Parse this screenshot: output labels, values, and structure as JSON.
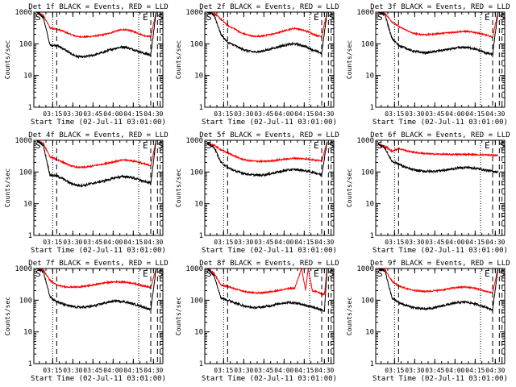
{
  "colors": {
    "events": "#000000",
    "lld": "#ff0000",
    "axes": "#000000",
    "background": "#ffffff"
  },
  "ylabel": "Counts/sec",
  "xlabel": "Start Time (02-Jul-11 03:01:00)",
  "xticks": [
    {
      "t": 15,
      "label": "03:15"
    },
    {
      "t": 30,
      "label": "03:30"
    },
    {
      "t": 45,
      "label": "03:45"
    },
    {
      "t": 60,
      "label": "04:00"
    },
    {
      "t": 75,
      "label": "04:15"
    },
    {
      "t": 90,
      "label": "04:30"
    }
  ],
  "yticks": [
    {
      "v": 1,
      "label": "1"
    },
    {
      "v": 10,
      "label": "10"
    },
    {
      "v": 100,
      "label": "100"
    },
    {
      "v": 1000,
      "label": "1000"
    }
  ],
  "markers": {
    "start": "S",
    "end": "E",
    "s2": "S"
  },
  "chart_data": [
    {
      "type": "line",
      "title": "Det 1f BLACK = Events, RED = LLD",
      "yscale": "log",
      "xlim": [
        1,
        97
      ],
      "ylim": [
        1,
        1000
      ],
      "x": [
        3,
        8,
        13,
        18,
        23,
        28,
        33,
        38,
        43,
        48,
        53,
        58,
        63,
        68,
        73,
        78,
        83,
        88,
        92
      ],
      "series": [
        {
          "color": "red",
          "values": [
            1000,
            800,
            320,
            290,
            250,
            200,
            170,
            165,
            170,
            180,
            195,
            220,
            260,
            280,
            260,
            220,
            180,
            170,
            1000
          ]
        },
        {
          "color": "black",
          "values": [
            1000,
            700,
            90,
            90,
            70,
            50,
            40,
            38,
            42,
            47,
            55,
            65,
            75,
            80,
            70,
            60,
            50,
            45,
            1000
          ]
        }
      ],
      "vlines": [
        {
          "t": 15,
          "style": "dotted"
        },
        {
          "t": 18,
          "style": "dashed"
        },
        {
          "t": 79,
          "style": "dotted"
        },
        {
          "t": 88,
          "style": "dashed"
        },
        {
          "t": 93,
          "style": "dashed"
        },
        {
          "t": 95,
          "style": "dashed"
        }
      ]
    },
    {
      "type": "line",
      "title": "Det 2f BLACK = Events, RED = LLD",
      "yscale": "log",
      "xlim": [
        1,
        97
      ],
      "ylim": [
        1,
        1000
      ],
      "x": [
        3,
        8,
        13,
        18,
        23,
        28,
        33,
        38,
        43,
        48,
        53,
        58,
        63,
        68,
        73,
        78,
        83,
        88,
        92
      ],
      "series": [
        {
          "color": "red",
          "values": [
            1000,
            900,
            600,
            380,
            300,
            220,
            190,
            170,
            175,
            190,
            210,
            240,
            280,
            310,
            280,
            240,
            190,
            170,
            1000
          ]
        },
        {
          "color": "black",
          "values": [
            1000,
            800,
            200,
            110,
            90,
            70,
            60,
            55,
            58,
            65,
            75,
            85,
            95,
            100,
            90,
            75,
            60,
            50,
            1000
          ]
        }
      ],
      "vlines": [
        {
          "t": 15,
          "style": "dotted"
        },
        {
          "t": 18,
          "style": "dashed"
        },
        {
          "t": 79,
          "style": "dotted"
        },
        {
          "t": 88,
          "style": "dashed"
        },
        {
          "t": 93,
          "style": "dashed"
        },
        {
          "t": 95,
          "style": "dashed"
        }
      ]
    },
    {
      "type": "line",
      "title": "Det 3f BLACK = Events, RED = LLD",
      "yscale": "log",
      "xlim": [
        1,
        97
      ],
      "ylim": [
        1,
        1000
      ],
      "x": [
        3,
        8,
        13,
        18,
        23,
        28,
        33,
        38,
        43,
        48,
        53,
        58,
        63,
        68,
        73,
        78,
        83,
        88,
        92
      ],
      "series": [
        {
          "color": "red",
          "values": [
            1000,
            900,
            500,
            350,
            280,
            220,
            200,
            195,
            200,
            210,
            220,
            230,
            240,
            245,
            235,
            215,
            190,
            160,
            1000
          ]
        },
        {
          "color": "black",
          "values": [
            1000,
            800,
            150,
            90,
            75,
            60,
            55,
            52,
            55,
            60,
            65,
            70,
            75,
            78,
            72,
            62,
            52,
            45,
            1000
          ]
        }
      ],
      "vlines": [
        {
          "t": 15,
          "style": "dotted"
        },
        {
          "t": 18,
          "style": "dashed"
        },
        {
          "t": 79,
          "style": "dotted"
        },
        {
          "t": 88,
          "style": "dashed"
        },
        {
          "t": 93,
          "style": "dashed"
        },
        {
          "t": 95,
          "style": "dashed"
        }
      ]
    },
    {
      "type": "line",
      "title": "Det 4f BLACK = Events, RED = LLD",
      "yscale": "log",
      "xlim": [
        1,
        97
      ],
      "ylim": [
        1,
        1000
      ],
      "x": [
        3,
        8,
        13,
        18,
        23,
        28,
        33,
        38,
        43,
        48,
        53,
        58,
        63,
        68,
        73,
        78,
        83,
        88,
        92
      ],
      "series": [
        {
          "color": "red",
          "values": [
            1000,
            800,
            300,
            250,
            200,
            160,
            140,
            140,
            150,
            165,
            180,
            200,
            220,
            240,
            230,
            210,
            180,
            160,
            1000
          ]
        },
        {
          "color": "black",
          "values": [
            1000,
            700,
            80,
            75,
            60,
            45,
            38,
            38,
            42,
            47,
            52,
            60,
            68,
            72,
            68,
            60,
            50,
            45,
            1000
          ]
        }
      ],
      "vlines": [
        {
          "t": 15,
          "style": "dotted"
        },
        {
          "t": 18,
          "style": "dashed"
        },
        {
          "t": 79,
          "style": "dotted"
        },
        {
          "t": 88,
          "style": "dashed"
        },
        {
          "t": 93,
          "style": "dashed"
        },
        {
          "t": 95,
          "style": "dashed"
        }
      ]
    },
    {
      "type": "line",
      "title": "Det 5f BLACK = Events, RED = LLD",
      "yscale": "log",
      "xlim": [
        1,
        97
      ],
      "ylim": [
        1,
        1000
      ],
      "x": [
        3,
        8,
        13,
        18,
        23,
        28,
        33,
        38,
        43,
        48,
        53,
        58,
        63,
        68,
        73,
        78,
        83,
        88,
        92
      ],
      "series": [
        {
          "color": "red",
          "values": [
            800,
            700,
            500,
            400,
            320,
            260,
            230,
            220,
            215,
            220,
            230,
            245,
            260,
            270,
            265,
            255,
            240,
            220,
            900
          ]
        },
        {
          "color": "black",
          "values": [
            800,
            600,
            200,
            140,
            110,
            95,
            85,
            80,
            80,
            85,
            95,
            105,
            115,
            120,
            115,
            105,
            95,
            80,
            900
          ]
        }
      ],
      "vlines": [
        {
          "t": 15,
          "style": "dotted"
        },
        {
          "t": 18,
          "style": "dashed"
        },
        {
          "t": 79,
          "style": "dotted"
        },
        {
          "t": 88,
          "style": "dashed"
        },
        {
          "t": 93,
          "style": "dashed"
        },
        {
          "t": 95,
          "style": "dashed"
        }
      ]
    },
    {
      "type": "line",
      "title": "Det 6f BLACK = Events, RED = LLD",
      "yscale": "log",
      "xlim": [
        1,
        97
      ],
      "ylim": [
        1,
        1000
      ],
      "x": [
        3,
        8,
        13,
        18,
        23,
        28,
        33,
        38,
        43,
        48,
        53,
        58,
        63,
        68,
        73,
        78,
        83,
        88,
        92
      ],
      "series": [
        {
          "color": "red",
          "values": [
            750,
            650,
            450,
            550,
            480,
            430,
            400,
            380,
            370,
            365,
            360,
            360,
            360,
            360,
            355,
            350,
            345,
            340,
            340
          ]
        },
        {
          "color": "black",
          "values": [
            750,
            550,
            220,
            180,
            140,
            120,
            110,
            105,
            105,
            110,
            115,
            125,
            135,
            140,
            135,
            125,
            115,
            105,
            100
          ]
        }
      ],
      "vlines": [
        {
          "t": 15,
          "style": "dotted"
        },
        {
          "t": 18,
          "style": "dashed"
        },
        {
          "t": 79,
          "style": "dotted"
        },
        {
          "t": 88,
          "style": "dashed"
        },
        {
          "t": 93,
          "style": "dashed"
        },
        {
          "t": 95,
          "style": "dashed"
        }
      ]
    },
    {
      "type": "line",
      "title": "Det 7f BLACK = Events, RED = LLD",
      "yscale": "log",
      "xlim": [
        1,
        97
      ],
      "ylim": [
        1,
        1000
      ],
      "x": [
        3,
        8,
        13,
        18,
        23,
        28,
        33,
        38,
        43,
        48,
        53,
        58,
        63,
        68,
        73,
        78,
        83,
        88,
        92
      ],
      "series": [
        {
          "color": "red",
          "values": [
            1000,
            900,
            420,
            300,
            270,
            260,
            260,
            270,
            290,
            320,
            350,
            370,
            380,
            375,
            350,
            320,
            280,
            250,
            1000
          ]
        },
        {
          "color": "black",
          "values": [
            1000,
            800,
            130,
            90,
            75,
            65,
            60,
            60,
            63,
            70,
            80,
            90,
            95,
            90,
            80,
            70,
            60,
            50,
            1000
          ]
        }
      ],
      "vlines": [
        {
          "t": 15,
          "style": "dotted"
        },
        {
          "t": 18,
          "style": "dashed"
        },
        {
          "t": 79,
          "style": "dotted"
        },
        {
          "t": 88,
          "style": "dashed"
        },
        {
          "t": 93,
          "style": "dashed"
        },
        {
          "t": 95,
          "style": "dashed"
        }
      ]
    },
    {
      "type": "line",
      "title": "Det 8f BLACK = Events, RED = LLD",
      "yscale": "log",
      "xlim": [
        1,
        97
      ],
      "ylim": [
        1,
        1000
      ],
      "x": [
        3,
        8,
        13,
        18,
        23,
        28,
        33,
        38,
        43,
        48,
        53,
        58,
        63,
        68,
        73,
        76,
        78,
        81,
        85,
        90,
        92
      ],
      "series": [
        {
          "color": "red",
          "values": [
            1000,
            700,
            300,
            270,
            230,
            200,
            180,
            170,
            170,
            180,
            195,
            210,
            230,
            240,
            1000,
            210,
            1000,
            200,
            180,
            150,
            1000
          ]
        },
        {
          "color": "black",
          "values": [
            1000,
            600,
            120,
            100,
            85,
            70,
            62,
            58,
            60,
            65,
            72,
            80,
            85,
            82,
            75,
            70,
            65,
            60,
            55,
            45,
            1000
          ]
        }
      ],
      "vlines": [
        {
          "t": 15,
          "style": "dotted"
        },
        {
          "t": 18,
          "style": "dashed"
        },
        {
          "t": 79,
          "style": "dotted"
        },
        {
          "t": 88,
          "style": "dashed"
        },
        {
          "t": 93,
          "style": "dashed"
        },
        {
          "t": 95,
          "style": "dashed"
        }
      ]
    },
    {
      "type": "line",
      "title": "Det 9f BLACK = Events, RED = LLD",
      "yscale": "log",
      "xlim": [
        1,
        97
      ],
      "ylim": [
        1,
        1000
      ],
      "x": [
        3,
        8,
        13,
        18,
        23,
        28,
        33,
        38,
        43,
        48,
        53,
        58,
        63,
        68,
        73,
        78,
        83,
        88,
        92
      ],
      "series": [
        {
          "color": "red",
          "values": [
            1000,
            900,
            400,
            280,
            240,
            210,
            195,
            190,
            195,
            205,
            220,
            240,
            255,
            260,
            245,
            220,
            190,
            170,
            1000
          ]
        },
        {
          "color": "black",
          "values": [
            1000,
            800,
            120,
            85,
            70,
            60,
            55,
            53,
            56,
            62,
            70,
            78,
            85,
            88,
            80,
            70,
            60,
            50,
            1000
          ]
        }
      ],
      "vlines": [
        {
          "t": 15,
          "style": "dotted"
        },
        {
          "t": 18,
          "style": "dashed"
        },
        {
          "t": 79,
          "style": "dotted"
        },
        {
          "t": 88,
          "style": "dashed"
        },
        {
          "t": 93,
          "style": "dashed"
        },
        {
          "t": 95,
          "style": "dashed"
        }
      ]
    }
  ]
}
